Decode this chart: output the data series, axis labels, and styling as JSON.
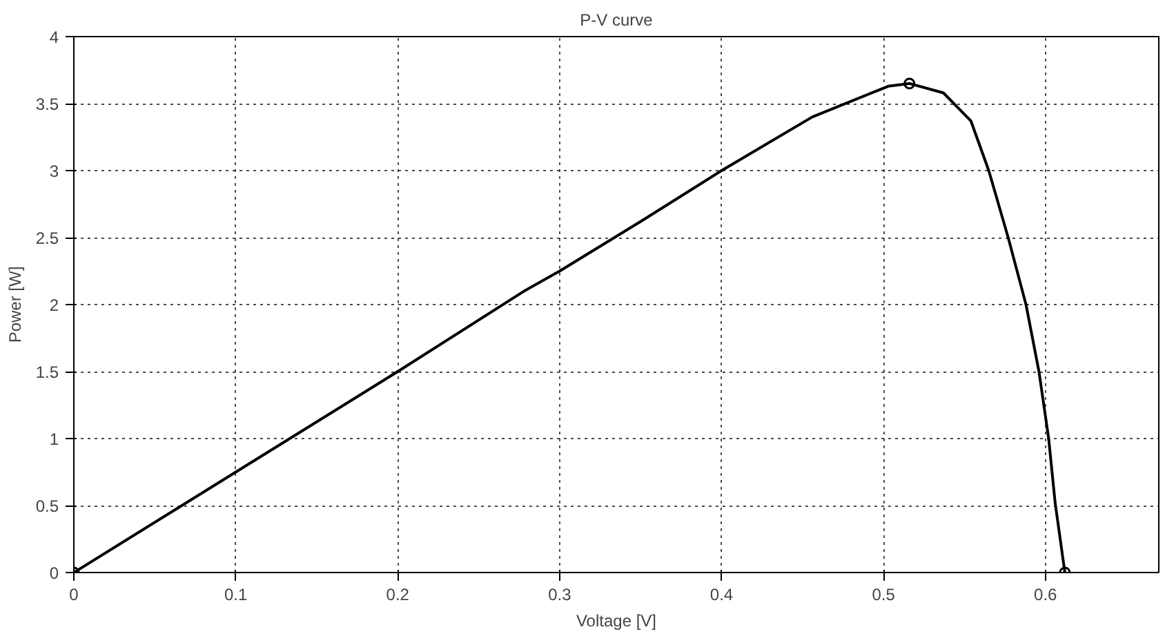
{
  "chart_data": {
    "type": "line",
    "title": "P-V curve",
    "xlabel": "Voltage [V]",
    "ylabel": "Power [W]",
    "series": [
      {
        "color": "#000000",
        "x": [
          0,
          0.1,
          0.2,
          0.278,
          0.3,
          0.35,
          0.4,
          0.456,
          0.503,
          0.516,
          0.537,
          0.554,
          0.565,
          0.577,
          0.588,
          0.596,
          0.602,
          0.606,
          0.612
        ],
        "values": [
          0,
          0.75,
          1.5,
          2.1,
          2.25,
          2.62,
          3.0,
          3.4,
          3.63,
          3.65,
          3.58,
          3.37,
          3.0,
          2.5,
          2.0,
          1.5,
          1.0,
          0.52,
          0
        ]
      },
      {
        "type": "scatter",
        "marker": "circle",
        "color": "#000000",
        "x": [
          0,
          0.516,
          0.612
        ],
        "values": [
          0,
          3.65,
          0
        ]
      }
    ],
    "xlim": [
      0,
      0.67
    ],
    "ylim": [
      0,
      4
    ],
    "xticks": [
      0,
      0.1,
      0.2,
      0.3,
      0.4,
      0.5,
      0.6
    ],
    "yticks": [
      0,
      0.5,
      1,
      1.5,
      2,
      2.5,
      3,
      3.5,
      4
    ],
    "grid": true,
    "marker": "none",
    "line_style": "solid"
  }
}
